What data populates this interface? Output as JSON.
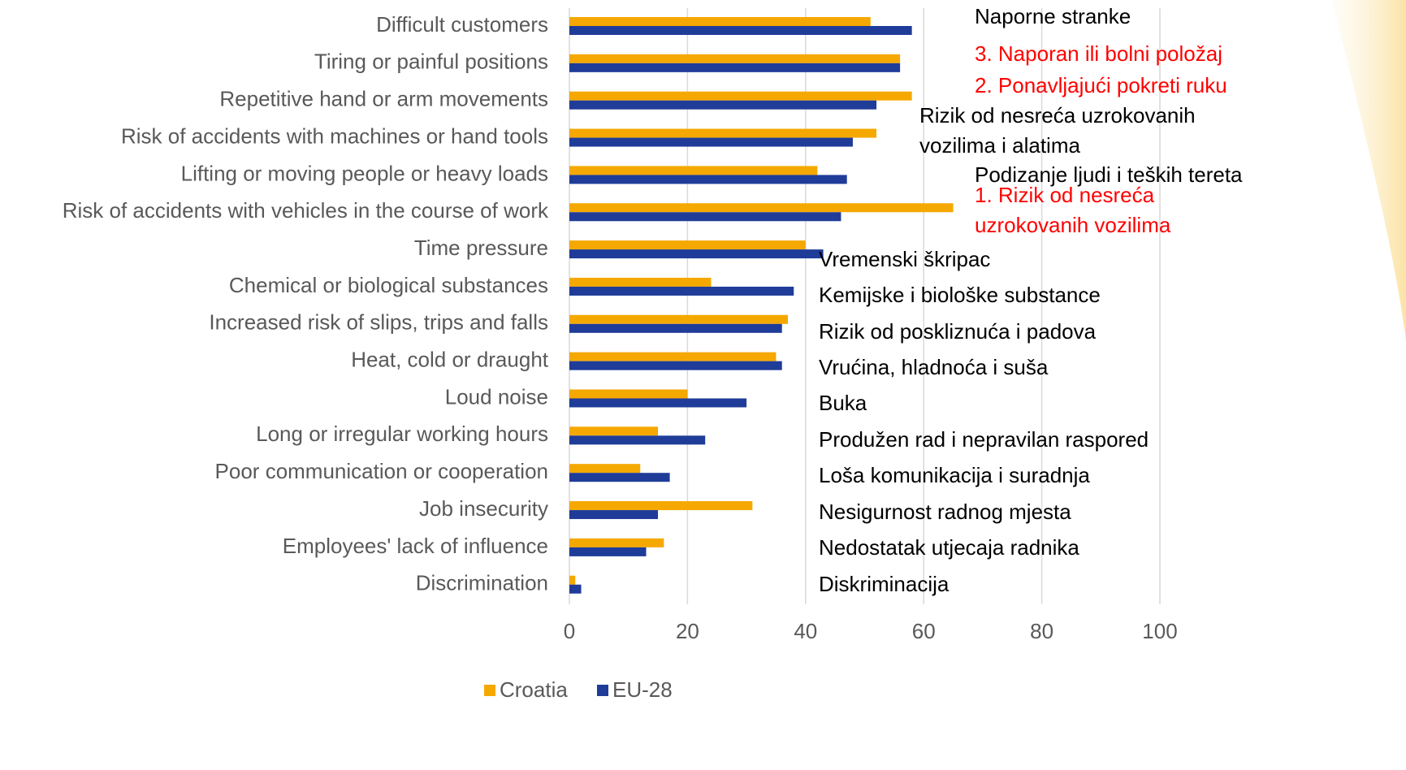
{
  "chart_data": {
    "type": "bar",
    "orientation": "horizontal",
    "categories": [
      "Difficult customers",
      "Tiring or painful positions",
      "Repetitive hand or arm movements",
      "Risk of accidents with machines or hand tools",
      "Lifting or moving people or heavy loads",
      "Risk of accidents with vehicles in the course of work",
      "Time pressure",
      "Chemical or biological substances",
      "Increased risk of slips, trips and falls",
      "Heat, cold or draught",
      "Loud noise",
      "Long or irregular working hours",
      "Poor communication or cooperation",
      "Job insecurity",
      "Employees' lack of influence",
      "Discrimination"
    ],
    "series": [
      {
        "name": "Croatia",
        "color": "#f5a800",
        "values": [
          51,
          56,
          58,
          52,
          42,
          65,
          40,
          24,
          37,
          35,
          20,
          15,
          12,
          31,
          16,
          1
        ]
      },
      {
        "name": "EU-28",
        "color": "#1f3c99",
        "values": [
          58,
          56,
          52,
          48,
          47,
          46,
          43,
          38,
          36,
          36,
          30,
          23,
          17,
          15,
          13,
          2
        ]
      }
    ],
    "xlim": [
      0,
      100
    ],
    "xticks": [
      0,
      20,
      40,
      60,
      80,
      100
    ],
    "grid": true,
    "legend": "bottom",
    "annotations": [
      {
        "lines": [
          "Naporne stranke"
        ],
        "color": "#000000"
      },
      {
        "lines": [
          "3. Naporan ili bolni položaj"
        ],
        "color": "#ff0000"
      },
      {
        "lines": [
          "2. Ponavljajući pokreti ruku"
        ],
        "color": "#ff0000"
      },
      {
        "lines": [
          "Rizik od nesreća uzrokovanih",
          "vozilima i alatima"
        ],
        "color": "#000000"
      },
      {
        "lines": [
          "Podizanje ljudi i teških tereta"
        ],
        "color": "#000000"
      },
      {
        "lines": [
          "1. Rizik od nesreća",
          "uzrokovanih vozilima"
        ],
        "color": "#ff0000"
      },
      {
        "lines": [
          "Vremenski škripac"
        ],
        "color": "#000000"
      },
      {
        "lines": [
          "Kemijske i biološke substance"
        ],
        "color": "#000000"
      },
      {
        "lines": [
          "Rizik od poskliznuća i padova"
        ],
        "color": "#000000"
      },
      {
        "lines": [
          "Vrućina, hladnoća i suša"
        ],
        "color": "#000000"
      },
      {
        "lines": [
          "Buka"
        ],
        "color": "#000000"
      },
      {
        "lines": [
          "Produžen rad i nepravilan raspored"
        ],
        "color": "#000000"
      },
      {
        "lines": [
          "Loša komunikacija i suradnja"
        ],
        "color": "#000000"
      },
      {
        "lines": [
          "Nesigurnost radnog mjesta"
        ],
        "color": "#000000"
      },
      {
        "lines": [
          "Nedostatak utjecaja radnika"
        ],
        "color": "#000000"
      },
      {
        "lines": [
          "Diskriminacija"
        ],
        "color": "#000000"
      }
    ]
  }
}
